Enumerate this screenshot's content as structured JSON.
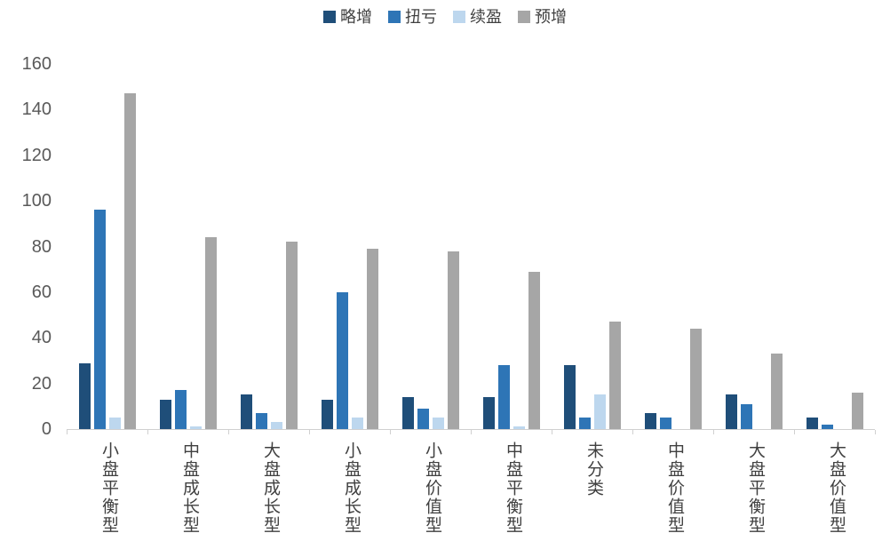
{
  "chart_data": {
    "type": "bar",
    "title": "",
    "xlabel": "",
    "ylabel": "",
    "categories": [
      "小盘平衡型",
      "中盘成长型",
      "大盘成长型",
      "小盘成长型",
      "小盘价值型",
      "中盘平衡型",
      "未分类",
      "中盘价值型",
      "大盘平衡型",
      "大盘价值型"
    ],
    "series": [
      {
        "name": "略增",
        "color": "#1F4E79",
        "values": [
          29,
          13,
          15,
          13,
          14,
          14,
          28,
          7,
          15,
          5
        ]
      },
      {
        "name": "扭亏",
        "color": "#2E75B6",
        "values": [
          96,
          17,
          7,
          60,
          9,
          28,
          5,
          5,
          11,
          2
        ]
      },
      {
        "name": "续盈",
        "color": "#BDD7EE",
        "values": [
          5,
          1,
          3,
          5,
          5,
          1,
          15,
          0,
          0,
          0
        ]
      },
      {
        "name": "预增",
        "color": "#A6A6A6",
        "values": [
          147,
          84,
          82,
          79,
          78,
          69,
          47,
          44,
          33,
          16
        ]
      }
    ],
    "ylim": [
      0,
      160
    ],
    "yticks": [
      0,
      20,
      40,
      60,
      80,
      100,
      120,
      140,
      160
    ],
    "grid": false,
    "legend_position": "top",
    "legend": [
      "略增",
      "扭亏",
      "续盈",
      "预增"
    ]
  },
  "colors": {
    "axis_line": "#d0d0d0",
    "tick_label": "#595959",
    "category_label": "#404040",
    "legend_label": "#404040",
    "background": "#ffffff"
  }
}
